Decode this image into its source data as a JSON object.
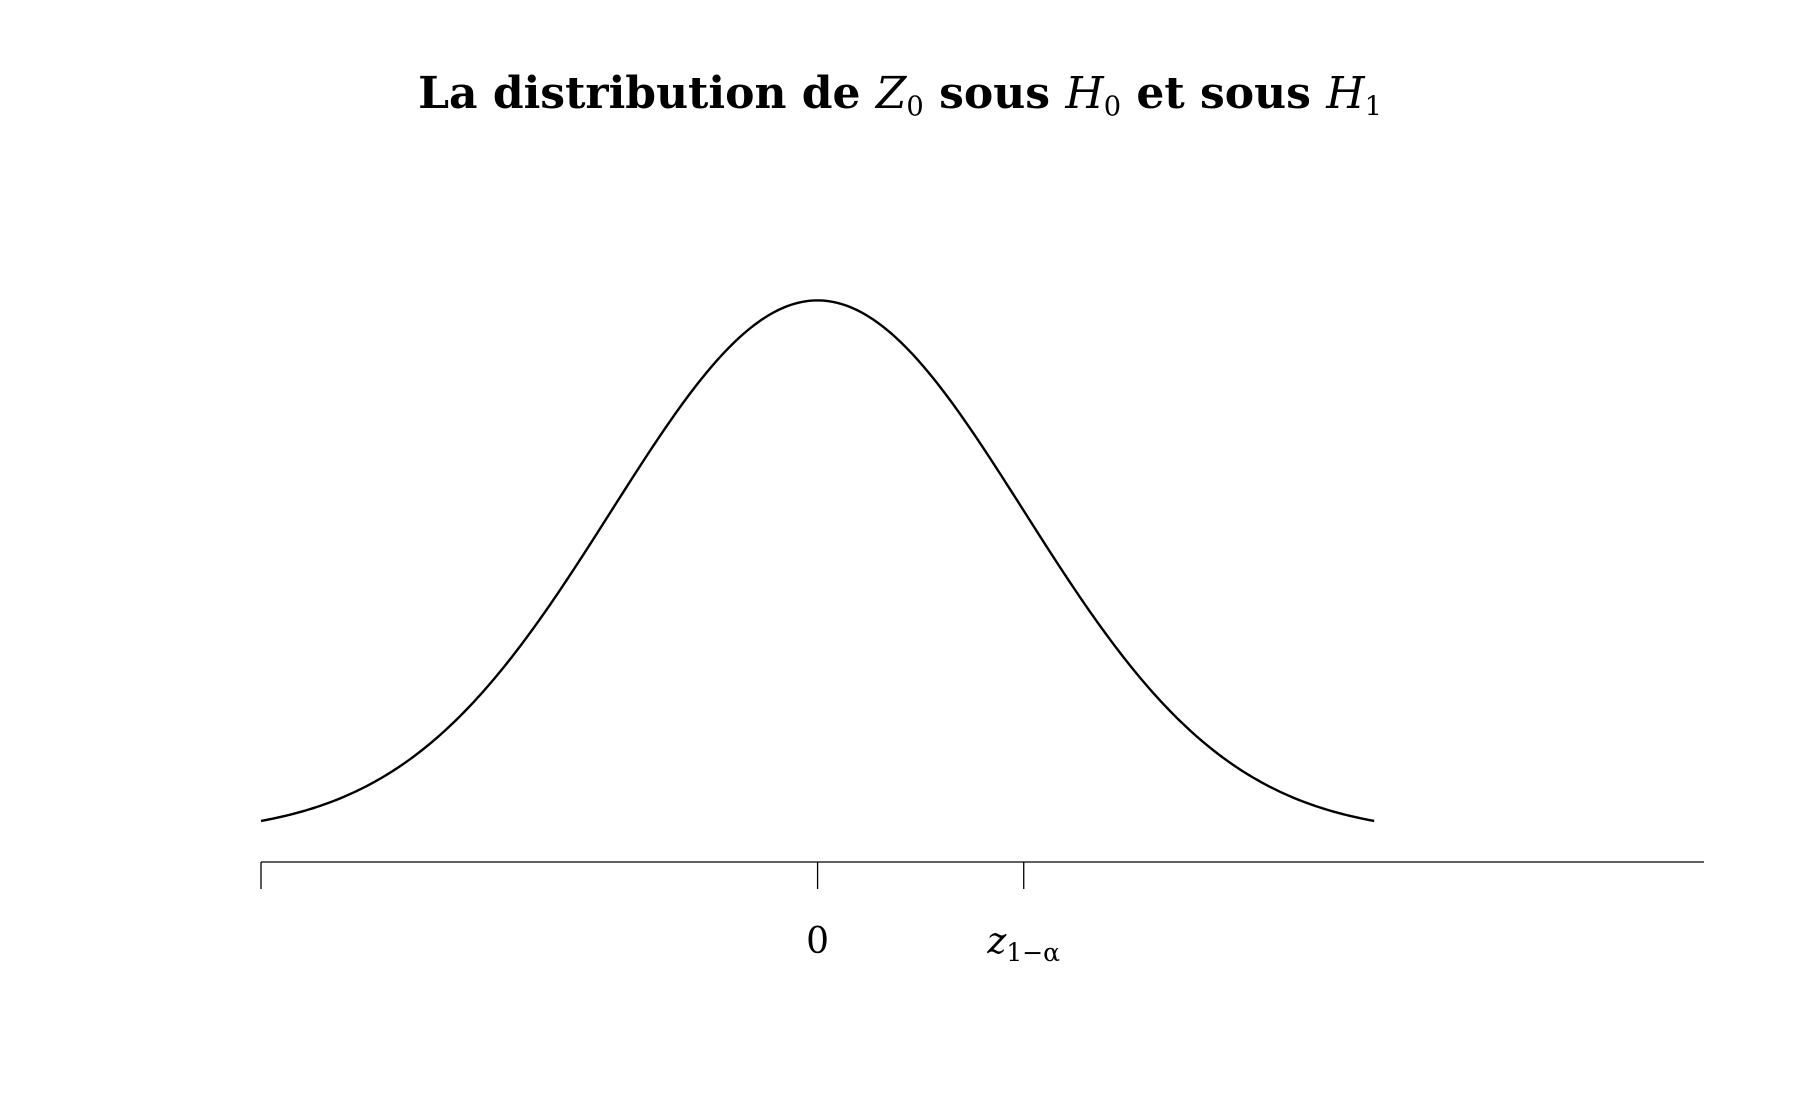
{
  "chart_data": {
    "type": "line",
    "title": {
      "parts": [
        {
          "text": "La distribution de ",
          "style": "bold"
        },
        {
          "text": "Z",
          "style": "math",
          "sub": "0"
        },
        {
          "text": " sous ",
          "style": "bold"
        },
        {
          "text": "H",
          "style": "math",
          "sub": "0"
        },
        {
          "text": " et sous ",
          "style": "bold"
        },
        {
          "text": "H",
          "style": "math",
          "sub": "1"
        }
      ]
    },
    "xlabel": "",
    "ylabel": "",
    "xlim": [
      -2.7,
      4.3
    ],
    "ylim": [
      -0.012,
      0.4
    ],
    "curve": {
      "distribution": "normal",
      "mean": 0,
      "sd": 1,
      "x_range": [
        -2.7,
        2.7
      ]
    },
    "x_ticks": [
      {
        "value": -2.7,
        "label": ""
      },
      {
        "value": 0,
        "label": "0"
      },
      {
        "value": 1.0,
        "label": "z",
        "sub": "1−α"
      }
    ],
    "grid": false,
    "legend": "none",
    "line_color": "#000000"
  }
}
